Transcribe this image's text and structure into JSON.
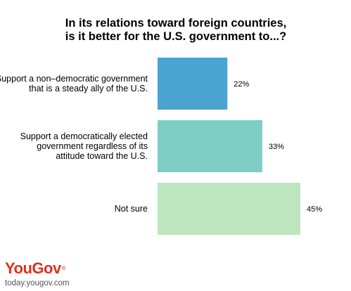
{
  "chart_data": {
    "type": "bar",
    "orientation": "horizontal",
    "title_lines": [
      "In its relations toward foreign countries,",
      "is it better for the U.S. government to...?"
    ],
    "categories": [
      [
        "Support a non–democratic government",
        "that is a steady ally of the U.S."
      ],
      [
        "Support a democratically elected",
        "government regardless of its",
        "attitude toward the U.S."
      ],
      [
        "Not sure"
      ]
    ],
    "values": [
      22,
      33,
      45
    ],
    "value_labels": [
      "22%",
      "33%",
      "45%"
    ],
    "colors": [
      "#4ba3cf",
      "#7dcdc4",
      "#bde6bf"
    ],
    "xlim": [
      0,
      45
    ],
    "grid": false,
    "legend": "none"
  },
  "branding": {
    "logo_you": "You",
    "logo_gov": "Gov",
    "logo_mark": "®",
    "url": "today.yougov.com"
  }
}
